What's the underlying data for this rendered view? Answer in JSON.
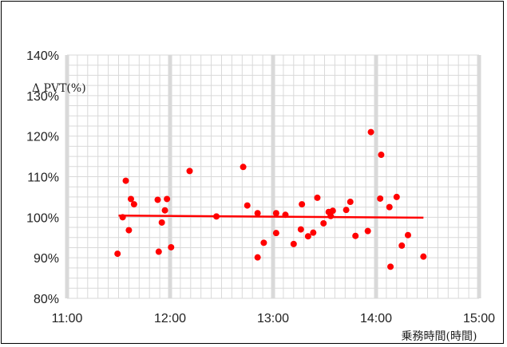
{
  "chart_data": {
    "type": "scatter",
    "title": "",
    "xlabel": "乗務時間(時間)",
    "ylabel": "Δ PVT(%)",
    "xlim": [
      11.0,
      15.0
    ],
    "ylim": [
      80,
      140
    ],
    "x_ticks": [
      "11:00",
      "12:00",
      "13:00",
      "14:00",
      "15:00"
    ],
    "y_ticks": [
      "80%",
      "90%",
      "100%",
      "110%",
      "120%",
      "130%",
      "140%"
    ],
    "grid": true,
    "legend": "none",
    "colors": {
      "points": "#ff0000",
      "trend": "#ff0000",
      "grid_minor": "#d9d9d9",
      "grid_major": "#d9d9d9"
    },
    "series": [
      {
        "x": [
          11.49,
          11.54,
          11.57,
          11.6,
          11.62,
          11.65,
          11.89,
          11.92,
          11.95,
          11.97,
          12.01,
          11.88,
          12.19,
          12.45,
          12.71,
          12.75,
          12.85,
          12.85,
          12.91,
          13.03,
          13.03,
          13.12,
          13.2,
          13.27,
          13.28,
          13.34,
          13.39,
          13.43,
          13.49,
          13.54,
          13.56,
          13.58,
          13.71,
          13.75,
          13.8,
          13.92,
          13.95,
          14.04,
          14.05,
          14.13,
          14.14,
          14.2,
          14.25,
          14.31,
          14.46
        ],
        "y": [
          91.0,
          100.0,
          109.0,
          96.8,
          104.5,
          103.2,
          91.5,
          98.7,
          101.7,
          104.5,
          92.6,
          104.3,
          111.4,
          100.2,
          112.4,
          102.9,
          90.1,
          101.0,
          93.7,
          101.0,
          96.1,
          100.6,
          93.4,
          97.0,
          103.2,
          95.3,
          96.2,
          104.8,
          98.5,
          101.3,
          100.3,
          101.6,
          101.8,
          103.8,
          95.4,
          96.6,
          121.0,
          104.6,
          115.4,
          102.5,
          87.8,
          105.0,
          93.0,
          95.6,
          90.3
        ]
      }
    ],
    "trendline": {
      "x": [
        11.5,
        14.46
      ],
      "y": [
        100.4,
        99.9
      ]
    }
  }
}
